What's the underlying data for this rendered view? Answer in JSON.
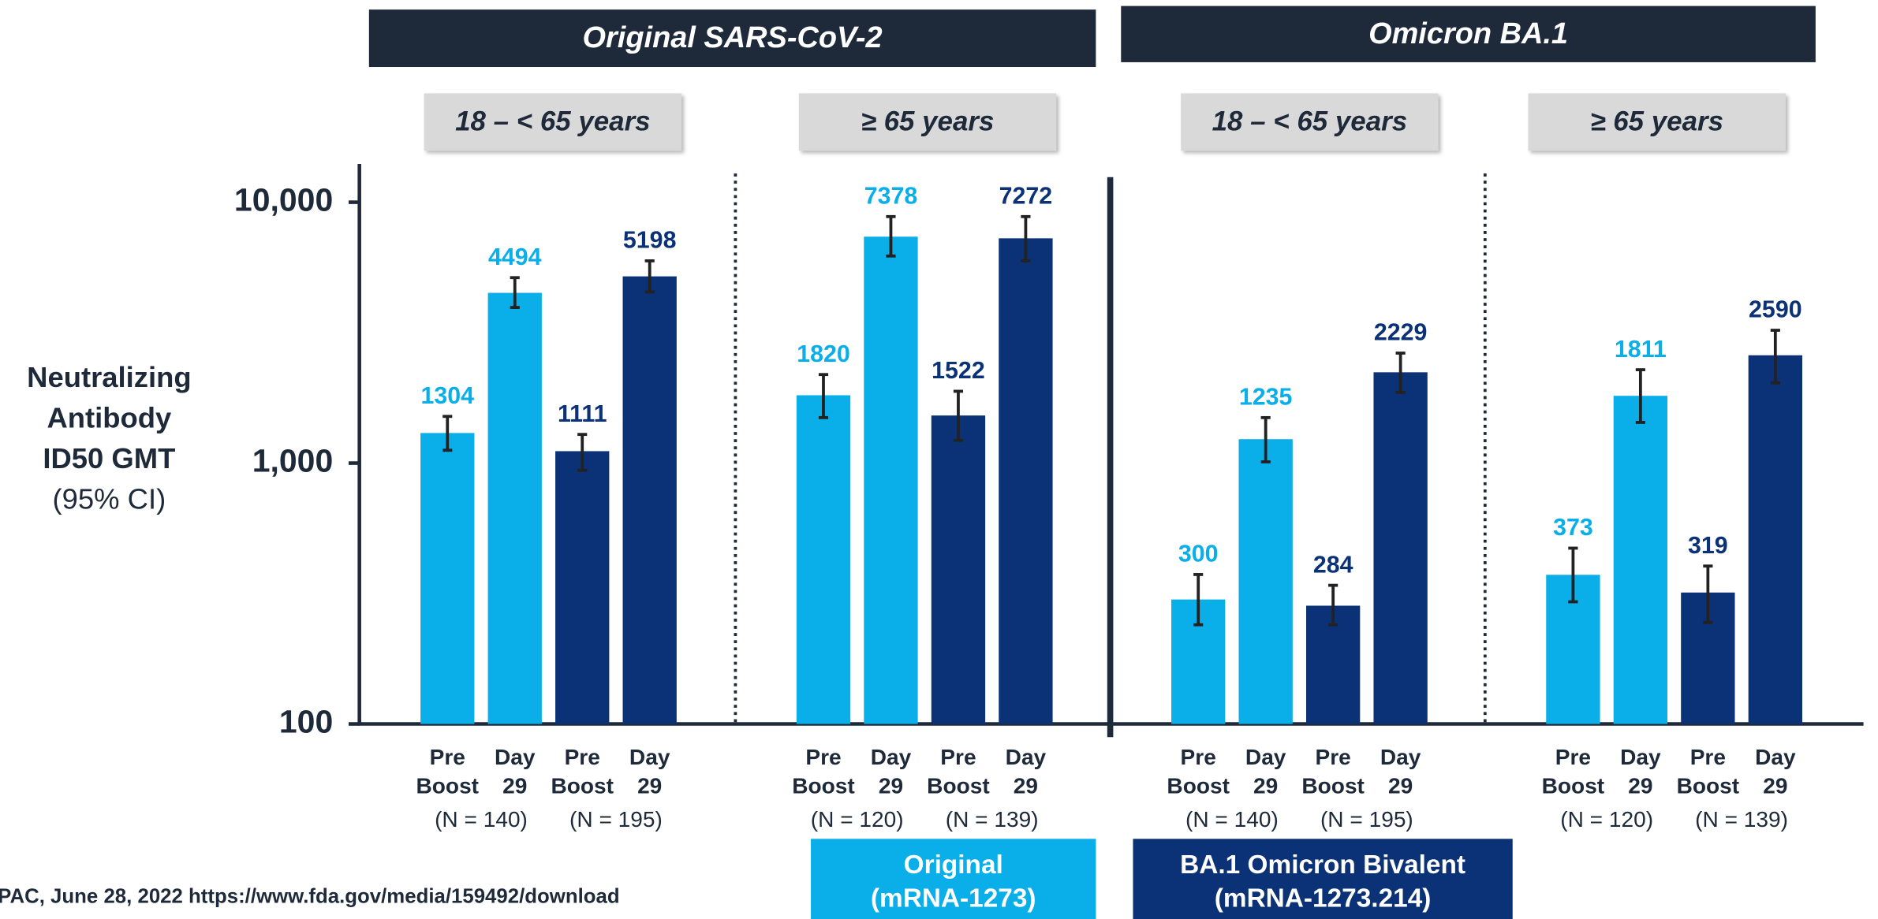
{
  "chart_data": {
    "type": "bar",
    "log_scale": true,
    "ylabel": [
      "Neutralizing",
      "Antibody",
      "ID50 GMT"
    ],
    "ylabel_note": "(95% CI)",
    "ylim": [
      100,
      10000
    ],
    "yticks": [
      100,
      {
        "value": 1000,
        "label": "1,000"
      },
      {
        "value": 10000,
        "label": "10,000"
      }
    ],
    "headers": [
      "Original SARS-CoV-2",
      "Omicron BA.1"
    ],
    "categories": [
      [
        "Pre",
        "Boost"
      ],
      [
        "Day",
        "29"
      ]
    ],
    "series": [
      {
        "name": [
          "Original",
          "(mRNA-1273)"
        ],
        "color": "#0aaee8"
      },
      {
        "name": [
          "BA.1 Omicron Bivalent",
          "(mRNA-1273.214)"
        ],
        "color": "#0b3276"
      }
    ],
    "groups": [
      {
        "label": "18 – < 65 years",
        "n_labels": [
          "(N = 140)",
          "(N = 195)"
        ],
        "values": [
          [
            1304,
            4494
          ],
          [
            1111,
            5198
          ]
        ],
        "error_low": [
          [
            1120,
            3950
          ],
          [
            938,
            4530
          ]
        ],
        "error_high": [
          [
            1510,
            5140
          ],
          [
            1288,
            5960
          ]
        ]
      },
      {
        "label": "≥ 65 years",
        "n_labels": [
          "(N = 120)",
          "(N = 139)"
        ],
        "values": [
          [
            1820,
            7378
          ],
          [
            1522,
            7272
          ]
        ],
        "error_low": [
          [
            1494,
            6220
          ],
          [
            1222,
            5960
          ]
        ],
        "error_high": [
          [
            2185,
            8810
          ],
          [
            1885,
            8810
          ]
        ]
      },
      {
        "label": "18 – < 65 years",
        "n_labels": [
          "(N = 140)",
          "(N = 195)"
        ],
        "values": [
          [
            300,
            1235
          ],
          [
            284,
            2229
          ]
        ],
        "error_low": [
          [
            240,
            1011
          ],
          [
            240,
            1866
          ]
        ],
        "error_high": [
          [
            374,
            1494
          ],
          [
            340,
            2640
          ]
        ]
      },
      {
        "label": "≥ 65 years",
        "n_labels": [
          "(N = 120)",
          "(N = 139)"
        ],
        "values": [
          [
            373,
            1811
          ],
          [
            319,
            2590
          ]
        ],
        "error_low": [
          [
            294,
            1432
          ],
          [
            245,
            2030
          ]
        ],
        "error_high": [
          [
            472,
            2280
          ],
          [
            403,
            3230
          ]
        ]
      }
    ],
    "source": "PAC, June 28, 2022 https://www.fda.gov/media/159492/download"
  }
}
